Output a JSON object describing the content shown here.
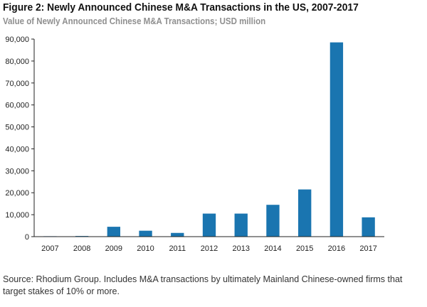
{
  "chart_data": {
    "type": "bar",
    "title": "Figure 2: Newly Announced Chinese M&A Transactions in the US, 2007-2017",
    "subtitle": "Value of Newly Announced Chinese M&A Transactions; USD million",
    "xlabel": "",
    "ylabel": "",
    "categories": [
      "2007",
      "2008",
      "2009",
      "2010",
      "2011",
      "2012",
      "2013",
      "2014",
      "2015",
      "2016",
      "2017"
    ],
    "values": [
      200,
      300,
      4500,
      2700,
      1700,
      10500,
      10500,
      14500,
      21500,
      88500,
      8800
    ],
    "ylim": [
      0,
      90000
    ],
    "yticks": [
      0,
      10000,
      20000,
      30000,
      40000,
      50000,
      60000,
      70000,
      80000,
      90000
    ],
    "ytick_labels": [
      "0",
      "10,000",
      "20,000",
      "30,000",
      "40,000",
      "50,000",
      "60,000",
      "70,000",
      "80,000",
      "90,000"
    ],
    "grid": false,
    "bar_color": "#1a75b0"
  },
  "footer": {
    "source": "Source: Rhodium Group. Includes M&A transactions by ultimately Mainland Chinese-owned firms that target stakes of 10% or more."
  }
}
